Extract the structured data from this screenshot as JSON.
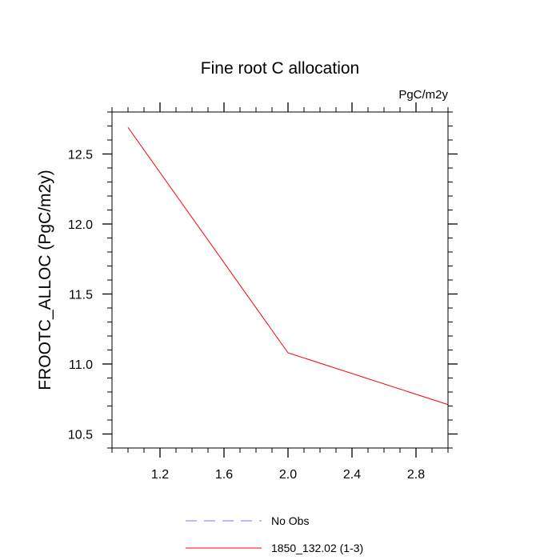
{
  "chart_data": {
    "type": "line",
    "title": "Fine root C allocation",
    "units_label": "PgC/m2y",
    "xlabel": "",
    "ylabel": "FROOTC_ALLOC  (PgC/m2y)",
    "xlim": [
      0.9,
      3.0
    ],
    "ylim": [
      10.4,
      12.8
    ],
    "x_major_ticks": [
      1.2,
      1.6,
      2.0,
      2.4,
      2.8
    ],
    "x_tick_labels": [
      "1.2",
      "1.6",
      "2.0",
      "2.4",
      "2.8"
    ],
    "x_minor_step": 0.1,
    "y_major_ticks": [
      10.5,
      11.0,
      11.5,
      12.0,
      12.5
    ],
    "y_tick_labels": [
      "10.5",
      "11.0",
      "11.5",
      "12.0",
      "12.5"
    ],
    "y_minor_step": 0.1,
    "grid": false,
    "legend_position": "bottom",
    "series": [
      {
        "name": "No Obs",
        "color": "#7777ee",
        "dash": "dashed",
        "x": [],
        "y": []
      },
      {
        "name": "1850_132.02 (1-3)",
        "color": "#ff0000",
        "dash": "solid",
        "x": [
          1.0,
          2.0,
          3.0
        ],
        "y": [
          12.69,
          11.08,
          10.71
        ]
      }
    ]
  }
}
